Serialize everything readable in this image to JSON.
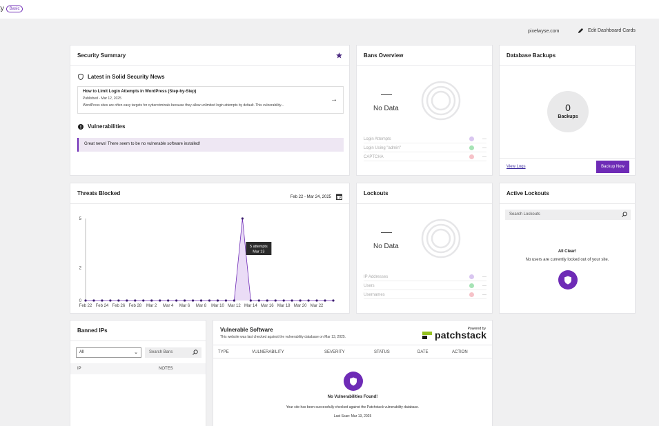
{
  "header": {
    "brand_fragment": "ty",
    "plan_badge": "Basic",
    "site": "pixelwyse.com",
    "edit_cards": "Edit Dashboard Cards"
  },
  "security_summary": {
    "title": "Security Summary",
    "news_heading": "Latest in Solid Security News",
    "article": {
      "title": "How to Limit Login Attempts in WordPress (Step-by-Step)",
      "date": "Published - Mar 12, 2025",
      "excerpt": "WordPress sites are often easy targets for cybercriminals because they allow unlimited login attempts by default. This vulnerability..."
    },
    "vuln_heading": "Vulnerabilities",
    "vuln_message": "Great news! There seem to be no vulnerable software installed!"
  },
  "bans_overview": {
    "title": "Bans Overview",
    "dash": "—",
    "no_data": "No Data",
    "legend": [
      {
        "label": "Login Attempts",
        "color": "#d9c6f0",
        "value": "—"
      },
      {
        "label": "Login Using \"admin\"",
        "color": "#a6e3b5",
        "value": "—"
      },
      {
        "label": "CAPTCHA",
        "color": "#f6c2c8",
        "value": "—"
      }
    ]
  },
  "database_backups": {
    "title": "Database Backups",
    "count": "0",
    "count_label": "Backups",
    "view_logs": "View Logs",
    "backup_now": "Backup Now"
  },
  "threats_blocked": {
    "title": "Threats Blocked",
    "date_range": "Feb 22 - Mar 24, 2025",
    "tooltip_line1": "5 attempts",
    "tooltip_line2": "Mar 13"
  },
  "lockouts": {
    "title": "Lockouts",
    "dash": "—",
    "no_data": "No Data",
    "legend": [
      {
        "label": "IP Addresses",
        "color": "#d9c6f0",
        "value": "—"
      },
      {
        "label": "Users",
        "color": "#a6e3b5",
        "value": "—"
      },
      {
        "label": "Usernames",
        "color": "#f6c2c8",
        "value": "—"
      }
    ]
  },
  "active_lockouts": {
    "title": "Active Lockouts",
    "search_placeholder": "Search Lockouts",
    "all_clear": "All Clear!",
    "message": "No users are currently locked out of your site."
  },
  "banned_ips": {
    "title": "Banned IPs",
    "filter_value": "All",
    "search_placeholder": "Search Bans",
    "col_ip": "IP",
    "col_notes": "NOTES"
  },
  "vulnerable_software": {
    "title": "Vulnerable Software",
    "subtitle": "This website was last checked against the vulnerability database on Mar 13, 2025.",
    "powered_by": "Powered by",
    "partner": "patchstack",
    "columns": [
      "TYPE",
      "VULNERABILITY",
      "SEVERITY",
      "STATUS",
      "DATE",
      "ACTION"
    ],
    "empty_title": "No Vulnerabilities Found!",
    "empty_message": "Your site has been successfully checked against the Patchstack vulnerability database.",
    "last_scan": "Last Scan: Mar 13, 2025"
  },
  "chart_data": {
    "type": "area",
    "x": [
      "Feb 22",
      "Feb 23",
      "Feb 24",
      "Feb 25",
      "Feb 26",
      "Feb 27",
      "Feb 28",
      "Mar 1",
      "Mar 2",
      "Mar 3",
      "Mar 4",
      "Mar 5",
      "Mar 6",
      "Mar 7",
      "Mar 8",
      "Mar 9",
      "Mar 10",
      "Mar 11",
      "Mar 12",
      "Mar 13",
      "Mar 14",
      "Mar 15",
      "Mar 16",
      "Mar 17",
      "Mar 18",
      "Mar 19",
      "Mar 20",
      "Mar 21",
      "Mar 22",
      "Mar 23",
      "Mar 24"
    ],
    "values": [
      0,
      0,
      0,
      0,
      0,
      0,
      0,
      0,
      0,
      0,
      0,
      0,
      0,
      0,
      0,
      0,
      0,
      0,
      0,
      5,
      0,
      0,
      0,
      0,
      0,
      0,
      0,
      0,
      0,
      0,
      0
    ],
    "xticks": [
      "Feb 22",
      "Feb 24",
      "Feb 26",
      "Feb 28",
      "Mar 2",
      "Mar 4",
      "Mar 6",
      "Mar 8",
      "Mar 10",
      "Mar 12",
      "Mar 14",
      "Mar 16",
      "Mar 18",
      "Mar 20",
      "Mar 22"
    ],
    "yticks": [
      "0",
      "2",
      "5"
    ],
    "ylim": [
      0,
      5
    ],
    "color": "#6e2bb6",
    "fill": "#eadcf6"
  }
}
